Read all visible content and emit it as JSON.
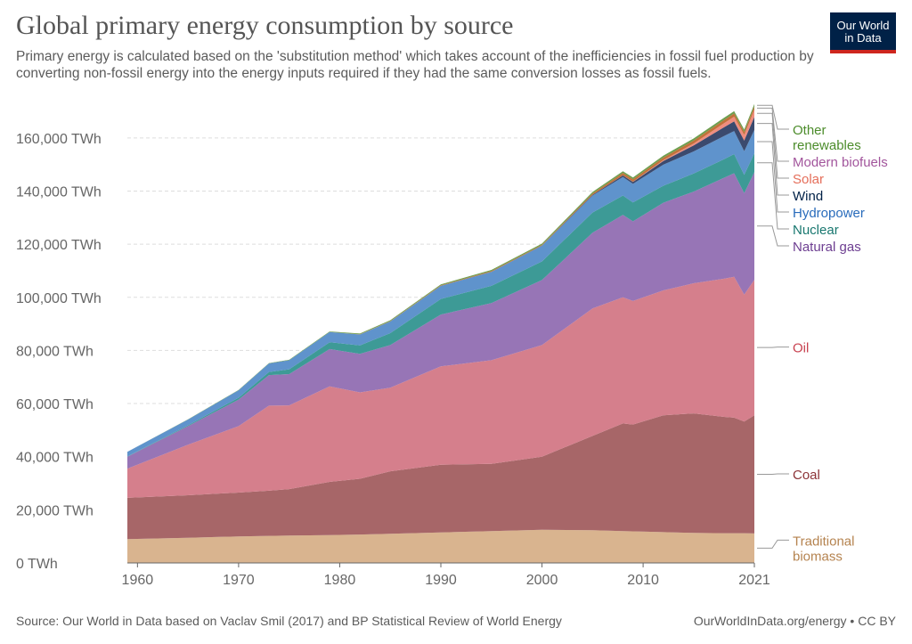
{
  "header": {
    "title": "Global primary energy consumption by source",
    "subtitle": "Primary energy is calculated based on the 'substitution method' which takes account of the inefficiencies in fossil fuel production by converting non-fossil energy into the energy inputs required if they had the same conversion losses as fossil fuels."
  },
  "logo": {
    "line1": "Our World",
    "line2": "in Data",
    "bg_color": "#002147",
    "accent_color": "#ce261e"
  },
  "footer": {
    "source": "Source: Our World in Data based on Vaclav Smil (2017) and BP Statistical Review of World Energy",
    "url": "OurWorldInData.org/energy • CC BY"
  },
  "chart_data": {
    "type": "area",
    "stacked": true,
    "x": [
      1959,
      1965,
      1970,
      1973,
      1975,
      1979,
      1982,
      1985,
      1990,
      1995,
      2000,
      2005,
      2008,
      2009,
      2012,
      2015,
      2018,
      2019,
      2020,
      2021
    ],
    "ylim": [
      0,
      170000
    ],
    "xlim": [
      1959,
      2021
    ],
    "y_ticks": [
      0,
      20000,
      40000,
      60000,
      80000,
      100000,
      120000,
      140000,
      160000
    ],
    "y_tick_labels": [
      "0 TWh",
      "20,000 TWh",
      "40,000 TWh",
      "60,000 TWh",
      "80,000 TWh",
      "100,000 TWh",
      "120,000 TWh",
      "140,000 TWh",
      "160,000 TWh"
    ],
    "x_ticks": [
      1960,
      1970,
      1980,
      1990,
      2000,
      2010,
      2021
    ],
    "x_tick_labels": [
      "1960",
      "1970",
      "1980",
      "1990",
      "2000",
      "2010",
      "2021"
    ],
    "grid": true,
    "legend_position": "right",
    "series": [
      {
        "name": "Traditional biomass",
        "label_lines": [
          "Traditional",
          "biomass"
        ],
        "color": "#d9b48f",
        "label_color": "#b5834f",
        "values": [
          9000,
          9500,
          10000,
          10200,
          10300,
          10500,
          10700,
          11000,
          11500,
          12000,
          12500,
          12300,
          12000,
          11900,
          11600,
          11300,
          11200,
          11200,
          11200,
          11100
        ]
      },
      {
        "name": "Coal",
        "label_lines": [
          "Coal"
        ],
        "color": "#a76668",
        "label_color": "#8c3337",
        "values": [
          15500,
          16000,
          16500,
          17000,
          17500,
          20000,
          21000,
          23500,
          25500,
          25300,
          27500,
          35500,
          40500,
          40200,
          44000,
          45000,
          43800,
          43500,
          42000,
          44500
        ]
      },
      {
        "name": "Oil",
        "label_lines": [
          "Oil"
        ],
        "color": "#d57f8c",
        "label_color": "#c8414f",
        "values": [
          11000,
          19000,
          25000,
          32000,
          31500,
          36000,
          32500,
          31500,
          37000,
          39000,
          42000,
          48000,
          47500,
          46500,
          47000,
          49000,
          52000,
          53000,
          47800,
          51000
        ]
      },
      {
        "name": "Natural gas",
        "label_lines": [
          "Natural gas"
        ],
        "color": "#9775b6",
        "label_color": "#6d3e91",
        "values": [
          4500,
          7000,
          10000,
          11500,
          11800,
          14000,
          14500,
          16000,
          19500,
          21500,
          24500,
          28500,
          31000,
          30000,
          33000,
          34500,
          38000,
          39000,
          38200,
          40500
        ]
      },
      {
        "name": "Nuclear",
        "label_lines": [
          "Nuclear"
        ],
        "color": "#3d9a96",
        "label_color": "#18776f",
        "values": [
          100,
          300,
          700,
          1200,
          1800,
          2600,
          3200,
          4500,
          5900,
          6500,
          7000,
          7600,
          7300,
          7100,
          6400,
          6800,
          7000,
          7200,
          6900,
          7100
        ]
      },
      {
        "name": "Hydropower",
        "label_lines": [
          "Hydropower"
        ],
        "color": "#5f93cc",
        "label_color": "#286bbb",
        "values": [
          1700,
          2200,
          2800,
          3200,
          3400,
          3800,
          4100,
          4400,
          4900,
          5300,
          5900,
          6400,
          7000,
          7000,
          7900,
          8300,
          8700,
          8700,
          8900,
          8800
        ]
      },
      {
        "name": "Wind",
        "label_lines": [
          "Wind"
        ],
        "color": "#3b4a6e",
        "label_color": "#002147",
        "values": [
          0,
          0,
          0,
          0,
          0,
          0,
          0,
          0,
          10,
          20,
          90,
          280,
          600,
          750,
          1400,
          2300,
          3300,
          3600,
          4000,
          4900
        ]
      },
      {
        "name": "Solar",
        "label_lines": [
          "Solar"
        ],
        "color": "#ef8d7f",
        "label_color": "#e56e5a",
        "values": [
          0,
          0,
          0,
          0,
          0,
          0,
          0,
          0,
          0,
          0,
          2,
          10,
          40,
          60,
          300,
          700,
          1500,
          1800,
          2100,
          2700
        ]
      },
      {
        "name": "Modern biofuels",
        "label_lines": [
          "Modern biofuels"
        ],
        "color": "#c2723a",
        "label_color": "#a2559c",
        "values": [
          0,
          0,
          0,
          0,
          0,
          0,
          100,
          150,
          200,
          250,
          250,
          500,
          900,
          950,
          1000,
          1100,
          1200,
          1200,
          1150,
          1200
        ]
      },
      {
        "name": "Other renewables",
        "label_lines": [
          "Other",
          "renewables"
        ],
        "color": "#6e9e4f",
        "label_color": "#4c8c2b",
        "values": [
          50,
          80,
          120,
          150,
          180,
          230,
          270,
          320,
          380,
          430,
          480,
          560,
          640,
          670,
          750,
          800,
          850,
          880,
          900,
          950
        ]
      }
    ]
  }
}
